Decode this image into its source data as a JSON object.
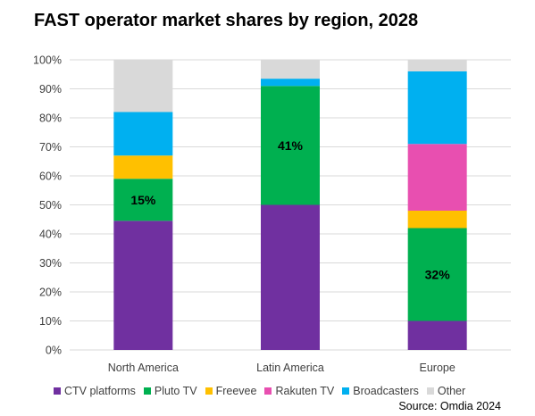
{
  "chart_data": {
    "type": "bar",
    "stacked": true,
    "title": "FAST operator market shares by region, 2028",
    "xlabel": "",
    "ylabel": "",
    "categories": [
      "North America",
      "Latin America",
      "Europe"
    ],
    "ylim": [
      0,
      100
    ],
    "yticks": [
      "0%",
      "10%",
      "20%",
      "30%",
      "40%",
      "50%",
      "60%",
      "70%",
      "80%",
      "90%",
      "100%"
    ],
    "grid": true,
    "legend_position": "bottom",
    "series": [
      {
        "name": "CTV platforms",
        "color": "#7030a0",
        "values": [
          44.5,
          50,
          10
        ]
      },
      {
        "name": "Pluto TV",
        "color": "#00b050",
        "values": [
          14.5,
          41,
          32
        ]
      },
      {
        "name": "Freevee",
        "color": "#ffc000",
        "values": [
          8,
          0,
          6
        ]
      },
      {
        "name": "Rakuten TV",
        "color": "#e84fb0",
        "values": [
          0,
          0,
          23
        ]
      },
      {
        "name": "Broadcasters",
        "color": "#00b0f0",
        "values": [
          15,
          2.5,
          25
        ]
      },
      {
        "name": "Other",
        "color": "#d9d9d9",
        "values": [
          18,
          6.5,
          4
        ]
      }
    ],
    "data_labels": [
      {
        "category": "North America",
        "series": "Pluto TV",
        "text": "15%"
      },
      {
        "category": "Latin America",
        "series": "Pluto TV",
        "text": "41%"
      },
      {
        "category": "Europe",
        "series": "Pluto TV",
        "text": "32%"
      }
    ]
  },
  "source": "Source: Omdia 2024"
}
